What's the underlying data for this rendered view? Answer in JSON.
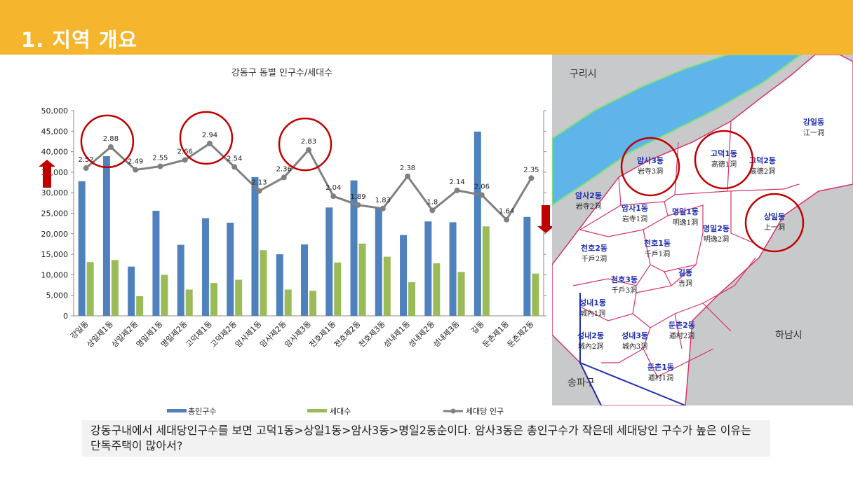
{
  "header": {
    "title": "1. 지역 개요",
    "color": "#f5b52c"
  },
  "chart_data": {
    "type": "bar",
    "title": "강동구 동별 인구수/세대수",
    "categories": [
      "강일동",
      "상일제1동",
      "상일제2동",
      "명일제1동",
      "명일제2동",
      "고덕제1동",
      "고덕제2동",
      "암사제1동",
      "암사제2동",
      "암사제3동",
      "천호제1동",
      "천호제2동",
      "천호제3동",
      "성내제1동",
      "성내제2동",
      "성내제3동",
      "길동",
      "둔촌제1동",
      "둔촌제2동"
    ],
    "series": [
      {
        "name": "총인구수",
        "type": "bar",
        "color": "#4f81bd",
        "values": [
          32800,
          38900,
          12000,
          25600,
          17300,
          23800,
          22700,
          33800,
          15000,
          17400,
          26400,
          33000,
          26300,
          19700,
          23000,
          22800,
          44900,
          0,
          24100
        ]
      },
      {
        "name": "세대수",
        "type": "bar",
        "color": "#9bbb59",
        "values": [
          13100,
          13600,
          4800,
          10000,
          6400,
          8000,
          8800,
          16000,
          6400,
          6100,
          13000,
          17600,
          14400,
          8200,
          12800,
          10700,
          21800,
          0,
          10300
        ]
      },
      {
        "name": "세대당 인구",
        "type": "line",
        "axis": "secondary",
        "color": "#808080",
        "values": [
          2.52,
          2.88,
          2.49,
          2.55,
          2.66,
          2.94,
          2.54,
          2.13,
          2.36,
          2.83,
          2.04,
          1.89,
          1.83,
          2.38,
          1.8,
          2.14,
          2.06,
          1.64,
          2.35
        ],
        "labels": [
          "2.52",
          "2.88",
          "2.49",
          "2.55",
          "2.66",
          "2.94",
          "2.54",
          "2.13",
          "2.36",
          "2.83",
          "2.04",
          "1.89",
          "1.83",
          "2.38",
          "1.8",
          "2.14",
          "2.06",
          "1.64",
          "2.35"
        ]
      }
    ],
    "ylim": [
      0,
      50000
    ],
    "yticks": [
      "0",
      "5,000",
      "10,000",
      "15,000",
      "20,000",
      "25,000",
      "30,000",
      "35,000",
      "40,000",
      "45,000",
      "50,000"
    ],
    "y2lim": [
      0,
      3.5
    ],
    "legend": "bottom",
    "highlighted": [
      "상일제1동",
      "고덕제1동",
      "암사제3동"
    ],
    "arrow_up_color": "#c00000",
    "arrow_down_color": "#c00000"
  },
  "map": {
    "cities": [
      "구리시",
      "하남시",
      "송파구"
    ],
    "districts": [
      {
        "ko": "강일동",
        "han": "江一洞"
      },
      {
        "ko": "고덕1동",
        "han": "高德1洞"
      },
      {
        "ko": "고덕2동",
        "han": "高德2洞"
      },
      {
        "ko": "암사3동",
        "han": "岩寺3洞"
      },
      {
        "ko": "암사2동",
        "han": "岩寺2洞"
      },
      {
        "ko": "암사1동",
        "han": "岩寺1洞"
      },
      {
        "ko": "상일동",
        "han": "上一洞"
      },
      {
        "ko": "명일1동",
        "han": "明逸1洞"
      },
      {
        "ko": "명일2동",
        "han": "明逸2洞"
      },
      {
        "ko": "천호1동",
        "han": "千戶1洞"
      },
      {
        "ko": "천호2동",
        "han": "千戶2洞"
      },
      {
        "ko": "천호3동",
        "han": "千戶3洞"
      },
      {
        "ko": "길동",
        "han": "吉洞"
      },
      {
        "ko": "성내1동",
        "han": "城內1洞"
      },
      {
        "ko": "성내2동",
        "han": "城內2洞"
      },
      {
        "ko": "성내3동",
        "han": "城內3洞"
      },
      {
        "ko": "둔촌2동",
        "han": "遁村2洞"
      },
      {
        "ko": "둔촌1동",
        "han": "遁村1洞"
      }
    ],
    "highlighted": [
      "암사3동",
      "고덕1동",
      "상일동"
    ]
  },
  "caption": "강동구내에서 세대당인구수를 보면 고덕1동>상일1동>암사3동>명일2동순이다. 암사3동은 총인구수가 작은데 세대당인 구수가 높은 이유는 단독주택이 많아서?"
}
